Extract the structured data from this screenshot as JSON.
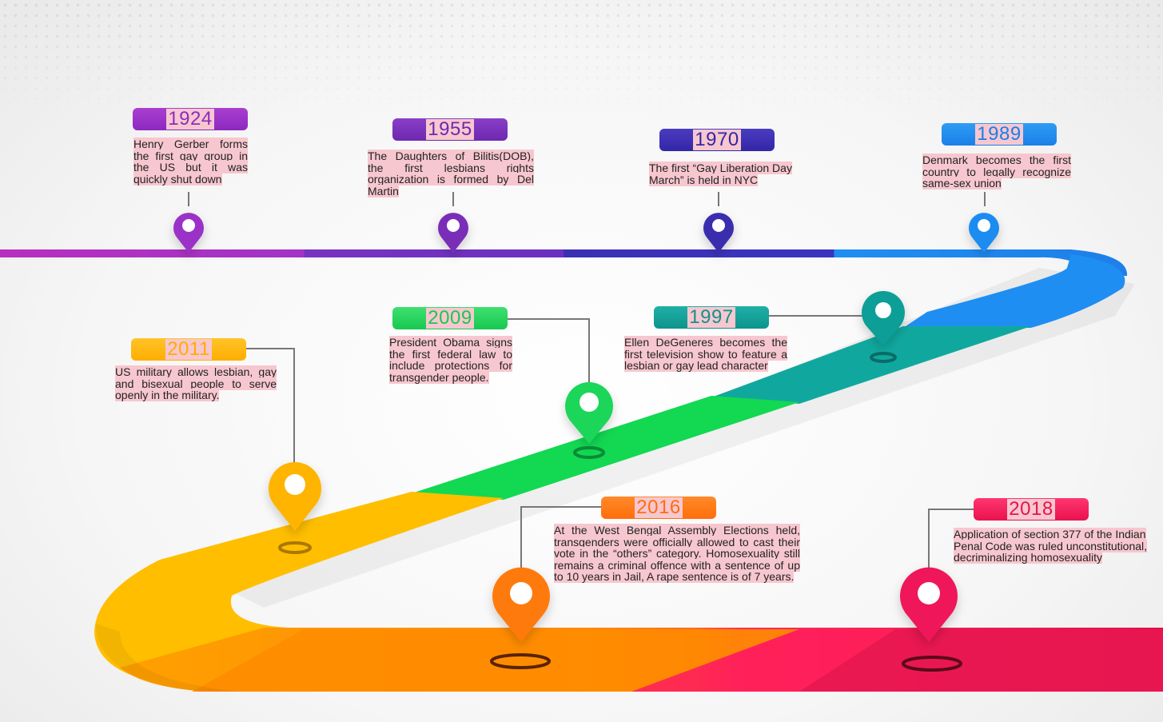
{
  "events": [
    {
      "year": "1924",
      "text": "Henry Gerber forms the first gay group in the US but it was quickly shut down",
      "color": "#9b32c8"
    },
    {
      "year": "1955",
      "text": "The Daughters of Bilitis(DOB), the first lesbians rights organization is formed by Del Martin",
      "color": "#7a2fb8"
    },
    {
      "year": "1970",
      "text": "The first “Gay Liberation Day March” is held in NYC",
      "color": "#3b2dae"
    },
    {
      "year": "1989",
      "text": "Denmark becomes the first country to legally recognize same-sex union",
      "color": "#1e8cf0"
    },
    {
      "year": "1997",
      "text": "Ellen DeGeneres becomes the first television show to feature a lesbian or gay lead character",
      "color": "#119e98"
    },
    {
      "year": "2009",
      "text": "President Obama signs the first federal law to include protections for transgender people.",
      "color": "#1fd65a"
    },
    {
      "year": "2011",
      "text": "US military allows lesbian, gay and bisexual people to serve openly in the military.",
      "color": "#ffb400"
    },
    {
      "year": "2016",
      "text": "At the West Bengal Assembly Elections held, transgenders were officially allowed to cast their vote in the “others” category. Homosexuality still remains a criminal offence with a sentence of up to 10 years in Jail, A rape sentence is of 7 years.",
      "color": "#ff7a10"
    },
    {
      "year": "2018",
      "text": "Application of section 377 of the Indian Penal Code was ruled unconstitutional, decriminalizing homosexuality",
      "color": "#f0195a"
    }
  ]
}
